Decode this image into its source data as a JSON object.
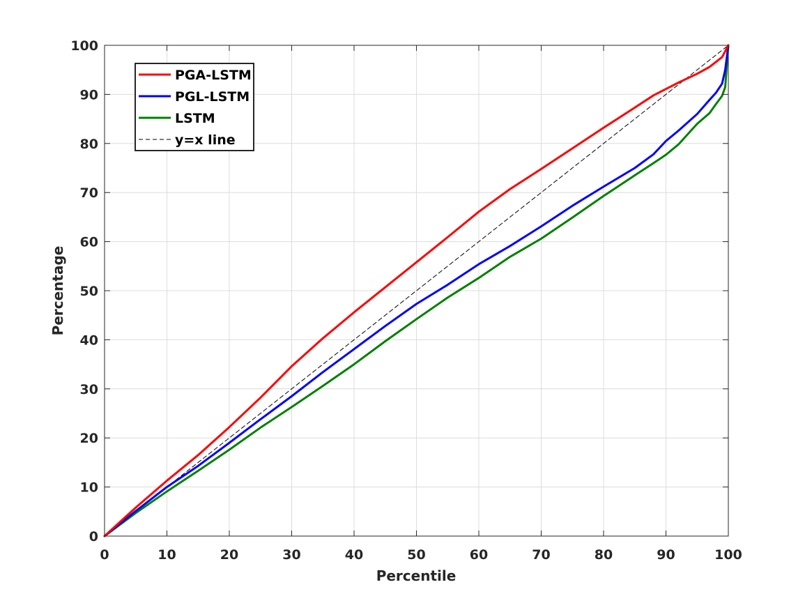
{
  "chart_data": {
    "type": "line",
    "title": "",
    "xlabel": "Percentile",
    "ylabel": "Percentage",
    "xlim": [
      0,
      100
    ],
    "ylim": [
      0,
      100
    ],
    "xticks": [
      0,
      10,
      20,
      30,
      40,
      50,
      60,
      70,
      80,
      90,
      100
    ],
    "yticks": [
      0,
      10,
      20,
      30,
      40,
      50,
      60,
      70,
      80,
      90,
      100
    ],
    "grid": true,
    "legend_position": "top-left",
    "series": [
      {
        "name": "PGA-LSTM",
        "color": "#ff0000",
        "style": "solid",
        "x": [
          0,
          5,
          10,
          15,
          20,
          25,
          30,
          35,
          40,
          45,
          50,
          55,
          60,
          65,
          70,
          75,
          80,
          85,
          88,
          90,
          92,
          95,
          97,
          99,
          100
        ],
        "y": [
          0,
          5.8,
          11.3,
          16.5,
          22.2,
          28.2,
          34.6,
          40.3,
          45.6,
          50.7,
          55.8,
          60.9,
          66.1,
          70.7,
          74.8,
          79.0,
          83.2,
          87.3,
          89.8,
          91.1,
          92.4,
          94.2,
          95.6,
          97.6,
          100
        ]
      },
      {
        "name": "PGL-LSTM",
        "color": "#0000ff",
        "style": "solid",
        "x": [
          0,
          5,
          10,
          15,
          20,
          25,
          30,
          35,
          40,
          45,
          50,
          55,
          60,
          65,
          70,
          75,
          80,
          85,
          88,
          90,
          92,
          95,
          97,
          98,
          99,
          99.5,
          100
        ],
        "y": [
          0,
          5.1,
          10.0,
          14.3,
          19.0,
          23.8,
          28.5,
          33.4,
          38.1,
          42.8,
          47.3,
          51.2,
          55.4,
          59.1,
          63.1,
          67.3,
          71.2,
          75.0,
          77.8,
          80.5,
          82.6,
          86.0,
          88.9,
          90.3,
          92.2,
          95.0,
          100
        ]
      },
      {
        "name": "LSTM",
        "color": "#008000",
        "style": "solid",
        "x": [
          0,
          5,
          10,
          15,
          20,
          25,
          30,
          35,
          40,
          45,
          50,
          55,
          60,
          65,
          70,
          75,
          80,
          85,
          88,
          90,
          92,
          95,
          97,
          98,
          99,
          99.5,
          100
        ],
        "y": [
          0,
          4.7,
          9.1,
          13.3,
          17.6,
          22.1,
          26.3,
          30.6,
          35.0,
          39.7,
          44.2,
          48.6,
          52.6,
          56.9,
          60.6,
          64.9,
          69.3,
          73.5,
          76.0,
          77.7,
          79.8,
          84.0,
          86.2,
          88.0,
          89.7,
          91.5,
          100
        ]
      },
      {
        "name": "y=x line",
        "color": "#000000",
        "style": "dashed",
        "x": [
          0,
          100
        ],
        "y": [
          0,
          100
        ]
      }
    ]
  }
}
